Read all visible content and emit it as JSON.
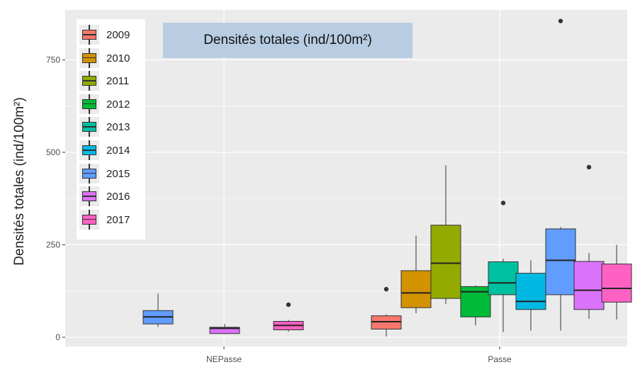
{
  "chart_data": {
    "type": "box",
    "title": "Densités totales (ind/100m²)",
    "xlabel": "",
    "ylabel": "Densités totales (ind/100m²)",
    "ylim": [
      -25,
      885
    ],
    "yticks": [
      0,
      250,
      500,
      750
    ],
    "categories": [
      "NEPasse",
      "Passe"
    ],
    "grid": true,
    "legend_position": "top-left",
    "series": [
      {
        "name": "2009",
        "color": "#F8766D",
        "values": {
          "NEPasse": null,
          "Passe": {
            "whisker_low": 2,
            "q1": 22,
            "median": 42,
            "q3": 58,
            "whisker_high": 62,
            "outliers": [
              130
            ]
          }
        }
      },
      {
        "name": "2010",
        "color": "#D39200",
        "values": {
          "NEPasse": null,
          "Passe": {
            "whisker_low": 65,
            "q1": 80,
            "median": 120,
            "q3": 180,
            "whisker_high": 275,
            "outliers": []
          }
        }
      },
      {
        "name": "2011",
        "color": "#93AA00",
        "values": {
          "NEPasse": null,
          "Passe": {
            "whisker_low": 90,
            "q1": 105,
            "median": 200,
            "q3": 303,
            "whisker_high": 465,
            "outliers": []
          }
        }
      },
      {
        "name": "2012",
        "color": "#00BA38",
        "values": {
          "NEPasse": null,
          "Passe": {
            "whisker_low": 32,
            "q1": 55,
            "median": 123,
            "q3": 137,
            "whisker_high": 140,
            "outliers": []
          }
        }
      },
      {
        "name": "2013",
        "color": "#00C19F",
        "values": {
          "NEPasse": null,
          "Passe": {
            "whisker_low": 14,
            "q1": 115,
            "median": 147,
            "q3": 204,
            "whisker_high": 212,
            "outliers": [
              363
            ]
          }
        }
      },
      {
        "name": "2014",
        "color": "#00B9E3",
        "values": {
          "NEPasse": null,
          "Passe": {
            "whisker_low": 18,
            "q1": 75,
            "median": 97,
            "q3": 173,
            "whisker_high": 208,
            "outliers": []
          }
        }
      },
      {
        "name": "2015",
        "color": "#619CFF",
        "values": {
          "NEPasse": {
            "whisker_low": 28,
            "q1": 36,
            "median": 55,
            "q3": 72,
            "whisker_high": 118,
            "outliers": []
          },
          "Passe": {
            "whisker_low": 18,
            "q1": 115,
            "median": 208,
            "q3": 293,
            "whisker_high": 298,
            "outliers": [
              855
            ]
          }
        }
      },
      {
        "name": "2016",
        "color": "#DB72FB",
        "values": {
          "NEPasse": {
            "whisker_low": 8,
            "q1": 10,
            "median": 24,
            "q3": 27,
            "whisker_high": 36,
            "outliers": []
          },
          "Passe": {
            "whisker_low": 50,
            "q1": 75,
            "median": 127,
            "q3": 205,
            "whisker_high": 228,
            "outliers": [
              460
            ]
          }
        }
      },
      {
        "name": "2017",
        "color": "#FF61C3",
        "values": {
          "NEPasse": {
            "whisker_low": 15,
            "q1": 20,
            "median": 32,
            "q3": 43,
            "whisker_high": 47,
            "outliers": [
              88
            ]
          },
          "Passe": {
            "whisker_low": 48,
            "q1": 95,
            "median": 132,
            "q3": 198,
            "whisker_high": 250,
            "outliers": []
          }
        }
      }
    ]
  },
  "colors": {
    "panel_background": "#EBEBEB",
    "grid_line": "#FFFFFF",
    "title_box": "#B8CDE2"
  }
}
